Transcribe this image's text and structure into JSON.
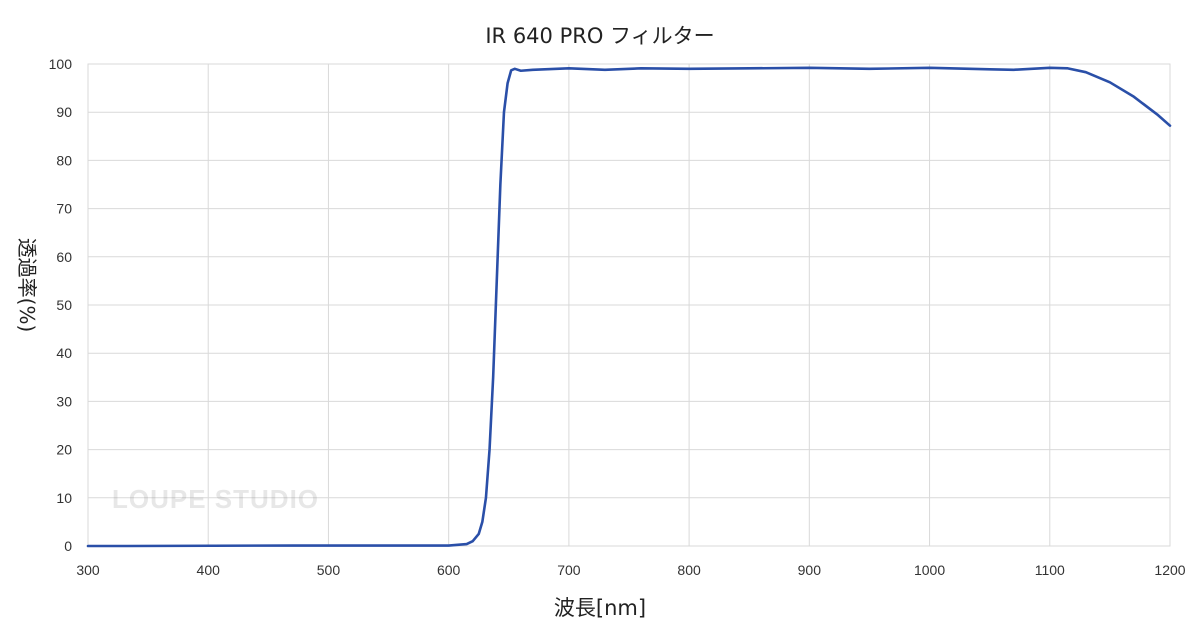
{
  "chart_data": {
    "type": "line",
    "title": "IR 640 PRO フィルター",
    "xlabel": "波長[nm]",
    "ylabel": "透過率(%)",
    "xlim": [
      300,
      1200
    ],
    "ylim": [
      0,
      100
    ],
    "xticks": [
      300,
      400,
      500,
      600,
      700,
      800,
      900,
      1000,
      1100,
      1200
    ],
    "yticks": [
      0,
      10,
      20,
      30,
      40,
      50,
      60,
      70,
      80,
      90,
      100
    ],
    "grid": true,
    "legend": "none",
    "series_color": "#2a4fa8",
    "series": [
      {
        "x": [
          300,
          330,
          470,
          600,
          615,
          620,
          625,
          628,
          631,
          634,
          637,
          640,
          643,
          646,
          649,
          652,
          655,
          660,
          670,
          700,
          730,
          760,
          800,
          850,
          900,
          950,
          1000,
          1050,
          1070,
          1100,
          1115,
          1130,
          1150,
          1170,
          1190,
          1200
        ],
        "y": [
          0,
          0,
          0.1,
          0.1,
          0.4,
          1,
          2.5,
          5,
          10,
          20,
          35,
          55,
          75,
          90,
          96,
          98.7,
          99,
          98.6,
          98.8,
          99.1,
          98.8,
          99.1,
          99.0,
          99.1,
          99.2,
          99.0,
          99.2,
          98.9,
          98.8,
          99.2,
          99.1,
          98.3,
          96.2,
          93.2,
          89.4,
          87.2
        ]
      }
    ]
  },
  "watermark": "LOUPE STUDIO"
}
